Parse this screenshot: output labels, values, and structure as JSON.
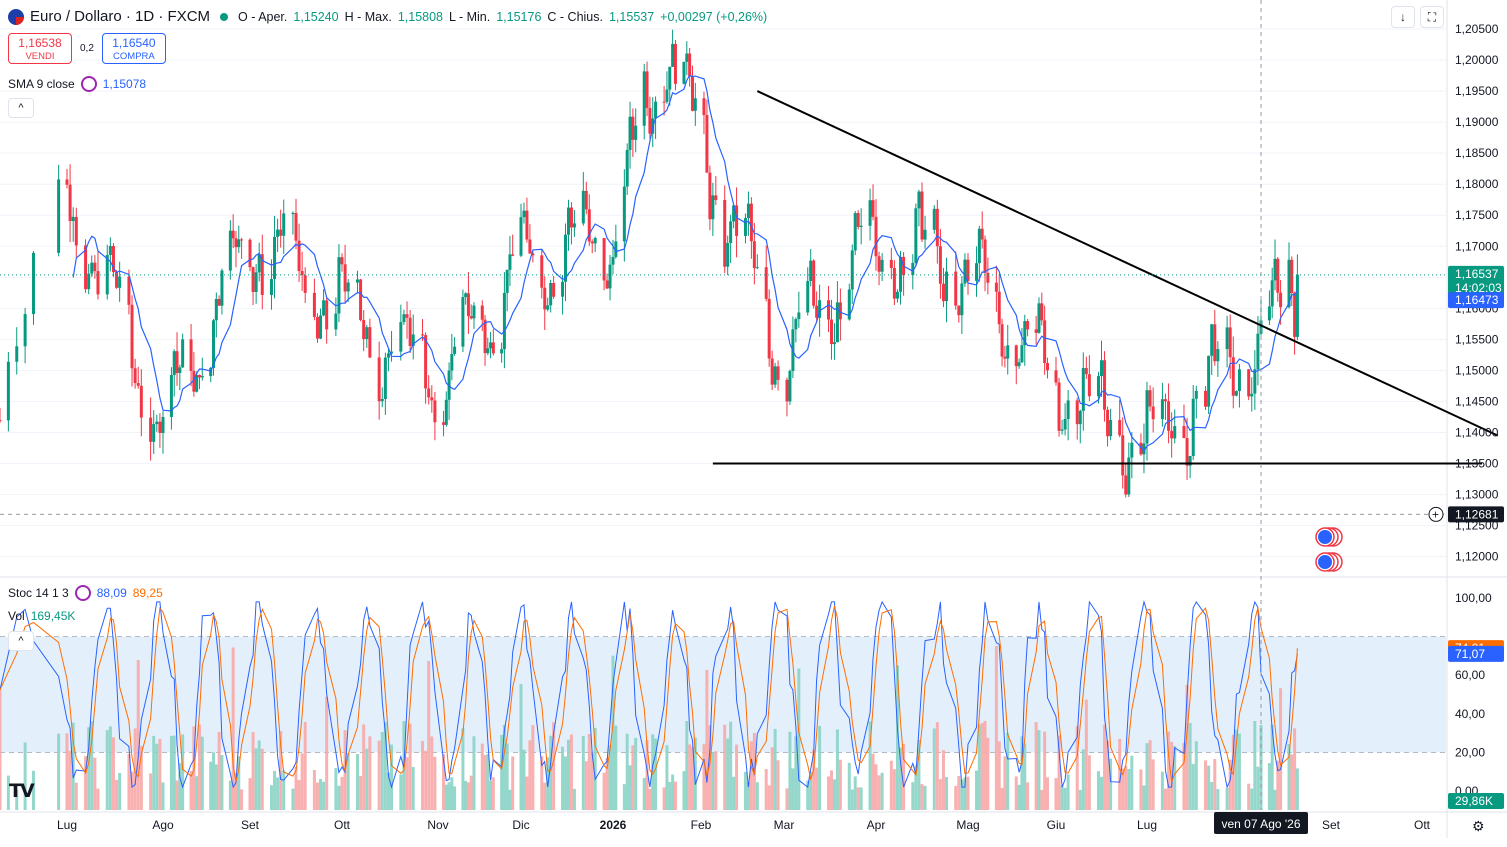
{
  "header": {
    "symbol": "Euro / Dollaro · 1D · FXCM",
    "open_label": "O - Aper.",
    "open": "1,15240",
    "high_label": "H - Max.",
    "high": "1,15808",
    "low_label": "L - Min.",
    "low": "1,15176",
    "close_label": "C - Chius.",
    "close": "1,15537",
    "change": "+0,00297 (+0,26%)"
  },
  "trade": {
    "sell_price": "1,16538",
    "sell_label": "VENDI",
    "spread": "0,2",
    "buy_price": "1,16540",
    "buy_label": "COMPRA"
  },
  "indicators": {
    "sma_label": "SMA 9 close",
    "sma_value": "1,15078",
    "stoch_label": "Stoc 14 1 3",
    "stoch_k": "88,09",
    "stoch_d": "89,25",
    "vol_label": "Vol",
    "vol_value": "169,45K"
  },
  "price_axis": {
    "ticks": [
      "1,20500",
      "1,20000",
      "1,19500",
      "1,19000",
      "1,18500",
      "1,18000",
      "1,17500",
      "1,17000",
      "1,16500",
      "1,16000",
      "1,15500",
      "1,15000",
      "1,14500",
      "1,14000",
      "1,13500",
      "1,13000",
      "1,12500",
      "1,12000"
    ],
    "current_price": "1,16537",
    "countdown": "14:02:03",
    "sma_price": "1,16473",
    "cursor_price": "1,12681"
  },
  "osc_axis": {
    "ticks": [
      "100,00",
      "60,00",
      "40,00",
      "20,00",
      "0,00"
    ],
    "stoch_d_tag": "74,01",
    "stoch_k_tag": "71,07",
    "vol_tag": "29,86K"
  },
  "time_axis": {
    "labels": [
      "Lug",
      "Ago",
      "Set",
      "Ott",
      "Nov",
      "Dic",
      "2026",
      "Feb",
      "Mar",
      "Apr",
      "Mag",
      "Giu",
      "Lug",
      "Set",
      "Ott"
    ],
    "cursor_date": "ven 07 Ago '26"
  },
  "colors": {
    "up": "#089981",
    "down": "#f23645",
    "sma": "#2962ff",
    "stoch_d": "#ff6d00",
    "stoch_k": "#2962ff",
    "band": "#e3f0fc"
  },
  "icons": {
    "download": "arrow-down-icon",
    "fullscreen": "fullscreen-icon",
    "settings": "gear-icon",
    "logo": "tradingview-logo"
  },
  "chart_data": {
    "type": "candlestick",
    "title": "Euro / Dollaro · 1D · FXCM",
    "yrange": [
      1.1165,
      1.2065
    ],
    "sma_period": 9,
    "dates": [
      "2025-06-23",
      "2025-07-01",
      "2025-08-01",
      "2025-09-01",
      "2025-10-01",
      "2025-11-01",
      "2025-12-01",
      "2026-01-01",
      "2026-01-20",
      "2026-02-01",
      "2026-03-01",
      "2026-04-01",
      "2026-05-01",
      "2026-06-01",
      "2026-07-01",
      "2026-08-07",
      "2026-08-20"
    ],
    "close_path": [
      1.142,
      1.179,
      1.141,
      1.172,
      1.16,
      1.148,
      1.167,
      1.172,
      1.204,
      1.186,
      1.152,
      1.171,
      1.166,
      1.148,
      1.138,
      1.155,
      1.1654
    ],
    "trendlines": [
      {
        "from": [
          "2026-02-20",
          1.195
        ],
        "to": [
          "2026-10-25",
          1.1395
        ]
      },
      {
        "from": [
          "2026-02-05",
          1.135
        ],
        "to": [
          "2026-10-20",
          1.135
        ]
      }
    ],
    "oscillator": {
      "stoch_k": 71.07,
      "stoch_d": 74.01,
      "bands": [
        20,
        50,
        80
      ],
      "range": [
        0,
        100
      ]
    },
    "volume_last": "29,86K"
  }
}
